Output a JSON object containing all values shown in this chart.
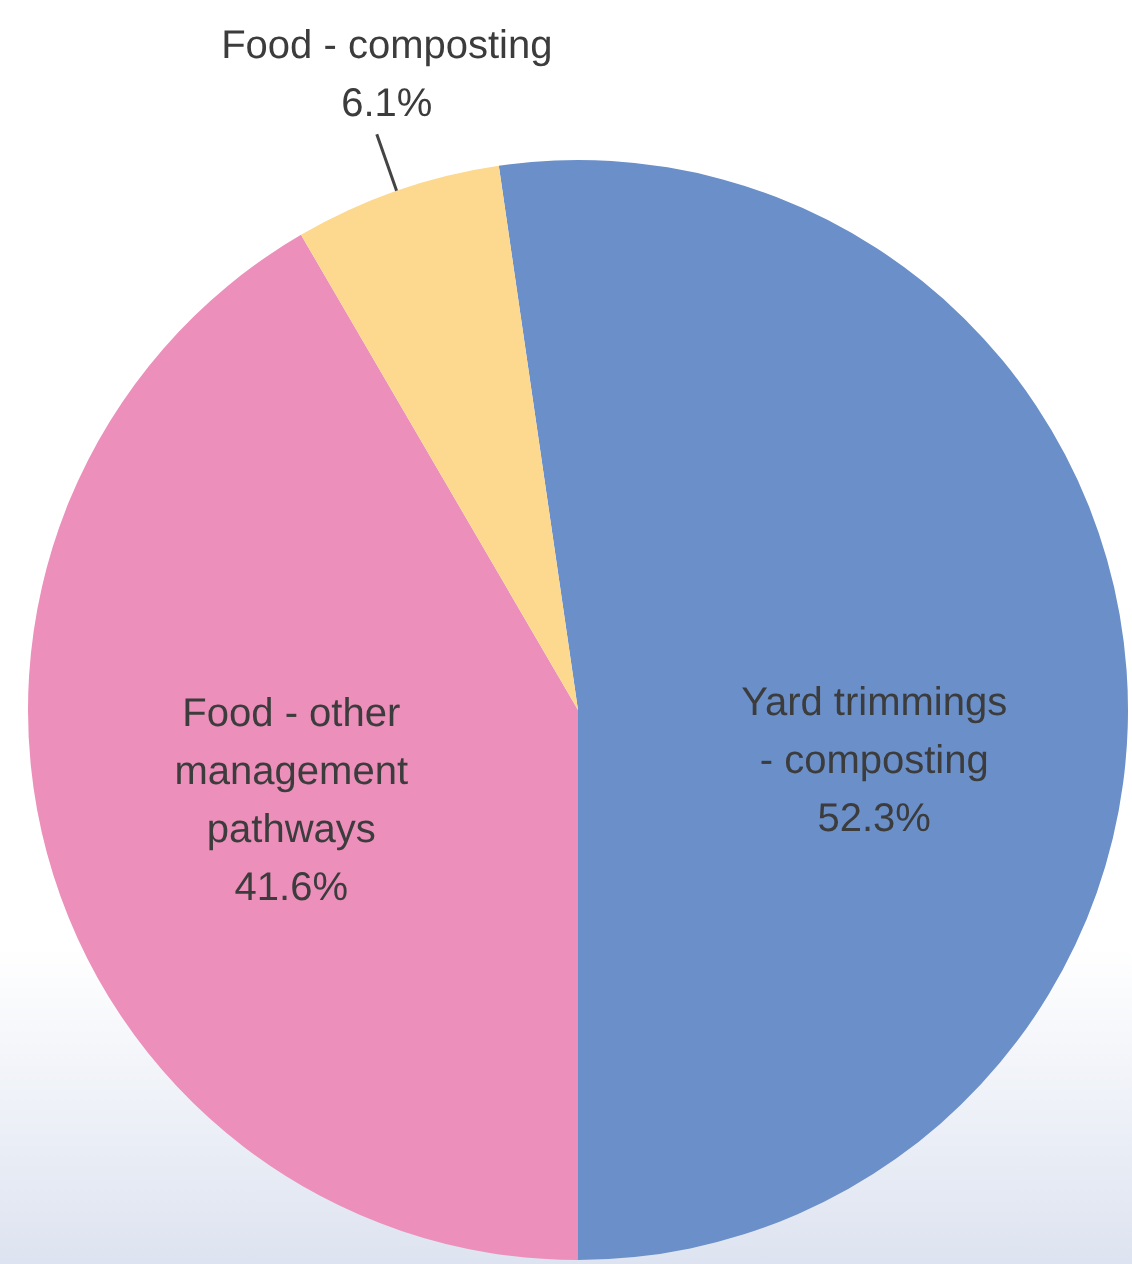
{
  "chart_data": {
    "type": "pie",
    "categories": [
      "Yard trimmings - composting",
      "Food - other management pathways",
      "Food - composting"
    ],
    "values": [
      52.3,
      41.6,
      6.1
    ],
    "colors": [
      "#6a8fc9",
      "#ec8fbb",
      "#fdd98f"
    ],
    "value_labels": [
      "52.3%",
      "41.6%",
      "6.1%"
    ]
  }
}
